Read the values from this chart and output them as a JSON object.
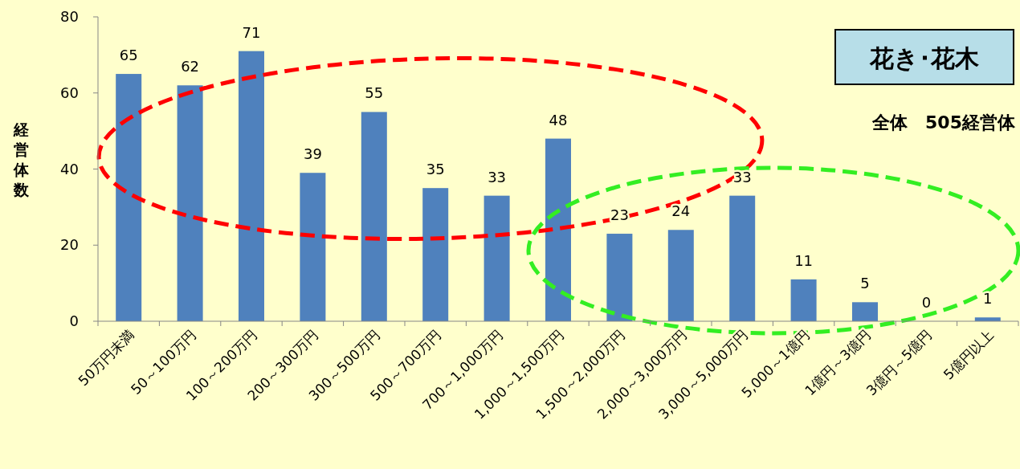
{
  "chart_data": {
    "type": "bar",
    "title": "花き･花木",
    "subtitle": "全体　505経営体",
    "ylabel": "経営体数",
    "categories": [
      "50万円未満",
      "50～100万円",
      "100～200万円",
      "200～300万円",
      "300～500万円",
      "500～700万円",
      "700～1,000万円",
      "1,000～1,500万円",
      "1,500～2,000万円",
      "2,000～3,000万円",
      "3,000～5,000万円",
      "5,000～1億円",
      "1億円～3億円",
      "3億円～5億円",
      "5億円以上"
    ],
    "values": [
      65,
      62,
      71,
      39,
      55,
      35,
      33,
      48,
      23,
      24,
      33,
      11,
      5,
      0,
      1
    ],
    "color": "#4f81bd",
    "ylim": [
      0,
      80
    ],
    "yticks": [
      0,
      20,
      40,
      60,
      80
    ],
    "data_labels": true,
    "grid": false
  }
}
